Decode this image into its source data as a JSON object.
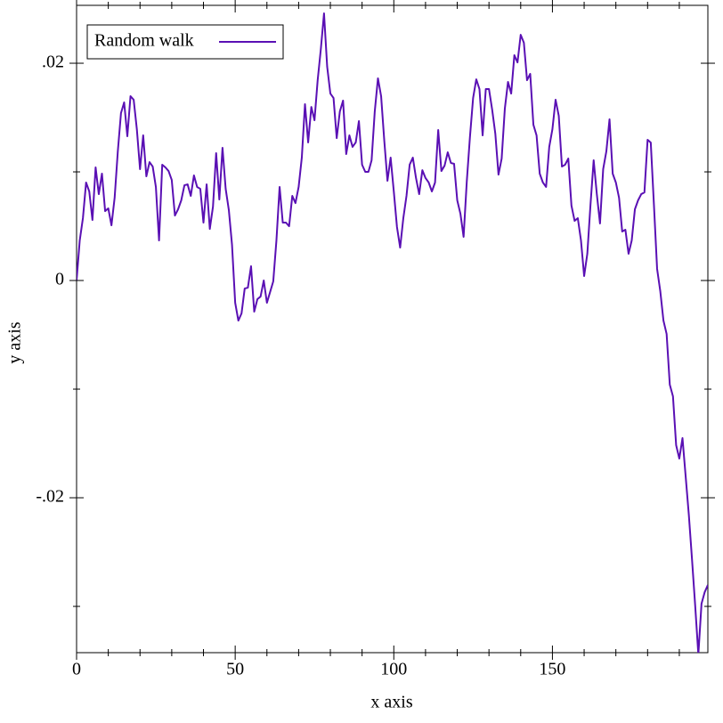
{
  "chart_data": {
    "type": "line",
    "xlabel": "x axis",
    "ylabel": "y axis",
    "xlim": [
      0,
      199
    ],
    "ylim": [
      -0.03426,
      0.02533
    ],
    "xticks": [
      0,
      50,
      100,
      150
    ],
    "xminorticks": [
      10,
      20,
      30,
      40,
      60,
      70,
      80,
      90,
      110,
      120,
      130,
      140,
      160,
      170,
      180,
      190
    ],
    "yticks": [
      {
        "value": -0.02,
        "label": "-.02"
      },
      0,
      {
        "value": 0.02,
        "label": ".02"
      }
    ],
    "yminorticks": [
      -0.03,
      -0.01,
      0.01
    ],
    "legend": "top-left",
    "x": [
      0,
      1,
      2,
      3,
      4,
      5,
      6,
      7,
      8,
      9,
      10,
      11,
      12,
      13,
      14,
      15,
      16,
      17,
      18,
      19,
      20,
      21,
      22,
      23,
      24,
      25,
      26,
      27,
      28,
      29,
      30,
      31,
      32,
      33,
      34,
      35,
      36,
      37,
      38,
      39,
      40,
      41,
      42,
      43,
      44,
      45,
      46,
      47,
      48,
      49,
      50,
      51,
      52,
      53,
      54,
      55,
      56,
      57,
      58,
      59,
      60,
      61,
      62,
      63,
      64,
      65,
      66,
      67,
      68,
      69,
      70,
      71,
      72,
      73,
      74,
      75,
      76,
      77,
      78,
      79,
      80,
      81,
      82,
      83,
      84,
      85,
      86,
      87,
      88,
      89,
      90,
      91,
      92,
      93,
      94,
      95,
      96,
      97,
      98,
      99,
      100,
      101,
      102,
      103,
      104,
      105,
      106,
      107,
      108,
      109,
      110,
      111,
      112,
      113,
      114,
      115,
      116,
      117,
      118,
      119,
      120,
      121,
      122,
      123,
      124,
      125,
      126,
      127,
      128,
      129,
      130,
      131,
      132,
      133,
      134,
      135,
      136,
      137,
      138,
      139,
      140,
      141,
      142,
      143,
      144,
      145,
      146,
      147,
      148,
      149,
      150,
      151,
      152,
      153,
      154,
      155,
      156,
      157,
      158,
      159,
      160,
      161,
      162,
      163,
      164,
      165,
      166,
      167,
      168,
      169,
      170,
      171,
      172,
      173,
      174,
      175,
      176,
      177,
      178,
      179,
      180,
      181,
      182,
      183,
      184,
      185,
      186,
      187,
      188,
      189,
      190,
      191,
      192,
      193,
      194,
      195,
      196,
      197,
      198,
      199
    ],
    "series": [
      {
        "name": "Random walk",
        "color": "#5a10b4",
        "values": [
          0,
          0.00369,
          0.00574,
          0.00902,
          0.0082,
          0.00557,
          0.01041,
          0.00795,
          0.00984,
          0.00639,
          0.00664,
          0.00508,
          0.00762,
          0.01189,
          0.01541,
          0.01639,
          0.01328,
          0.01697,
          0.01664,
          0.01393,
          0.01025,
          0.01336,
          0.00959,
          0.0109,
          0.01049,
          0.00861,
          0.00369,
          0.01066,
          0.01041,
          0.01008,
          0.00926,
          0.00598,
          0.00656,
          0.00738,
          0.00877,
          0.00885,
          0.00779,
          0.00967,
          0.00861,
          0.00844,
          0.00533,
          0.00885,
          0.00475,
          0.0068,
          0.01172,
          0.00746,
          0.01221,
          0.00844,
          0.00648,
          0.00328,
          -0.00205,
          -0.00369,
          -0.00303,
          -0.00074,
          -0.00066,
          0.00131,
          -0.00287,
          -0.00172,
          -0.00148,
          0,
          -0.00205,
          -0.00107,
          -8e-05,
          0.00369,
          0.00861,
          0.00533,
          0.00533,
          0.005,
          0.00779,
          0.00713,
          0.00861,
          0.01131,
          0.01623,
          0.01271,
          0.01598,
          0.01475,
          0.01844,
          0.02131,
          0.02459,
          0.01967,
          0.01721,
          0.0168,
          0.01311,
          0.01557,
          0.01656,
          0.01164,
          0.01336,
          0.0123,
          0.01271,
          0.01467,
          0.01066,
          0.01,
          0.01,
          0.01107,
          0.01557,
          0.01861,
          0.01697,
          0.01287,
          0.00918,
          0.01131,
          0.0082,
          0.00492,
          0.00303,
          0.00574,
          0.00779,
          0.01066,
          0.01131,
          0.00943,
          0.00795,
          0.01016,
          0.00943,
          0.00902,
          0.0082,
          0.00902,
          0.01385,
          0.01008,
          0.01057,
          0.0118,
          0.01082,
          0.01074,
          0.00738,
          0.00615,
          0.00402,
          0.0091,
          0.0132,
          0.0168,
          0.01852,
          0.01762,
          0.01336,
          0.01762,
          0.01762,
          0.01574,
          0.01352,
          0.00975,
          0.01123,
          0.01582,
          0.01828,
          0.01721,
          0.02074,
          0.02008,
          0.02262,
          0.02189,
          0.01844,
          0.01902,
          0.01434,
          0.01336,
          0.00984,
          0.00902,
          0.00861,
          0.0123,
          0.01393,
          0.01664,
          0.01516,
          0.01049,
          0.01066,
          0.01123,
          0.00689,
          0.00549,
          0.00574,
          0.00369,
          0.00041,
          0.00246,
          0.00697,
          0.01107,
          0.00795,
          0.00525,
          0.01025,
          0.01189,
          0.01484,
          0.00984,
          0.00902,
          0.00762,
          0.00451,
          0.00467,
          0.00246,
          0.00369,
          0.00656,
          0.00738,
          0.00795,
          0.00811,
          0.01295,
          0.0127,
          0.00697,
          0.00107,
          -0.00098,
          -0.00369,
          -0.00492,
          -0.00959,
          -0.01066,
          -0.01516,
          -0.01639,
          -0.01451,
          -0.01803,
          -0.02156,
          -0.02566,
          -0.02992,
          -0.03443,
          -0.02975,
          -0.02869,
          -0.02803
        ]
      }
    ]
  }
}
